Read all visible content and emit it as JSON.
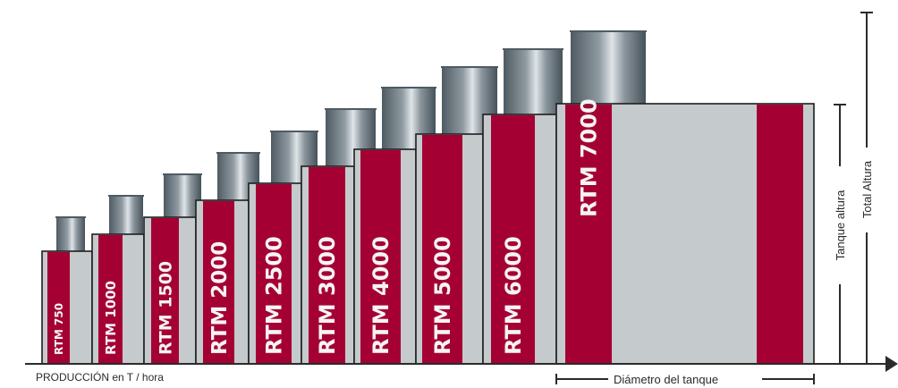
{
  "title": "",
  "x_axis_label": "PRODUCCIÓN en T / hora",
  "diameter_label": "Diámetro del tanque",
  "tank_height_label": "Tanque altura",
  "total_height_label": "Total Altura",
  "colors": {
    "tank_body": "#c5cacd",
    "tank_band": "#a50034",
    "cylinder_dark": "#4f5b62",
    "cylinder_light": "#d9dfe2",
    "axis": "#2b2b2b",
    "model_text": "#f4f4f4"
  },
  "models": [
    {
      "label": "RTM 750"
    },
    {
      "label": "RTM 1000"
    },
    {
      "label": "RTM 1500"
    },
    {
      "label": "RTM 2000"
    },
    {
      "label": "RTM 2500"
    },
    {
      "label": "RTM 3000"
    },
    {
      "label": "RTM 4000"
    },
    {
      "label": "RTM 5000"
    },
    {
      "label": "RTM 6000"
    },
    {
      "label": "RTM 7000"
    }
  ]
}
